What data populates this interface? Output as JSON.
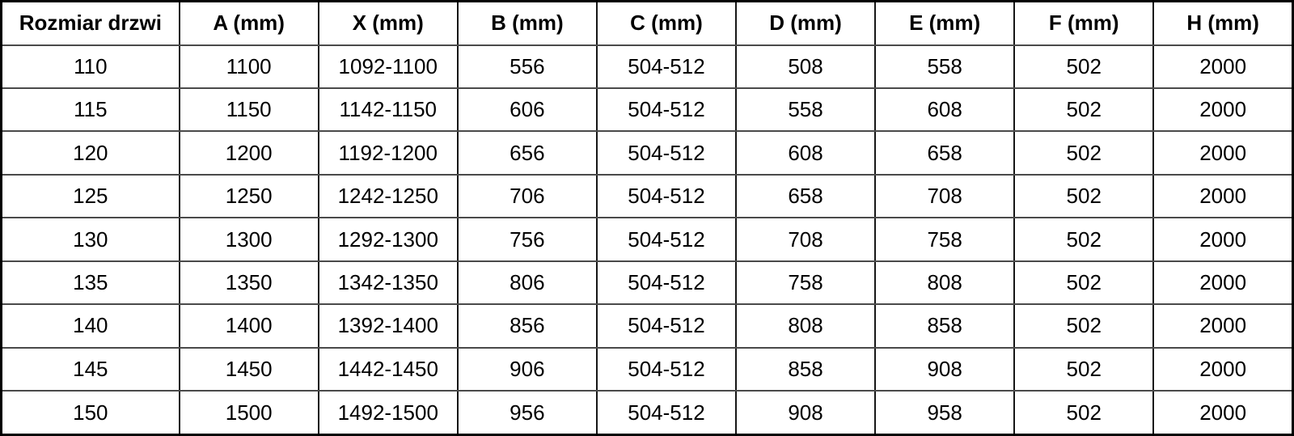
{
  "table": {
    "columns": [
      "Rozmiar drzwi",
      "A (mm)",
      "X (mm)",
      "B (mm)",
      "C (mm)",
      "D (mm)",
      "E (mm)",
      "F (mm)",
      "H (mm)"
    ],
    "rows": [
      [
        "110",
        "1100",
        "1092-1100",
        "556",
        "504-512",
        "508",
        "558",
        "502",
        "2000"
      ],
      [
        "115",
        "1150",
        "1142-1150",
        "606",
        "504-512",
        "558",
        "608",
        "502",
        "2000"
      ],
      [
        "120",
        "1200",
        "1192-1200",
        "656",
        "504-512",
        "608",
        "658",
        "502",
        "2000"
      ],
      [
        "125",
        "1250",
        "1242-1250",
        "706",
        "504-512",
        "658",
        "708",
        "502",
        "2000"
      ],
      [
        "130",
        "1300",
        "1292-1300",
        "756",
        "504-512",
        "708",
        "758",
        "502",
        "2000"
      ],
      [
        "135",
        "1350",
        "1342-1350",
        "806",
        "504-512",
        "758",
        "808",
        "502",
        "2000"
      ],
      [
        "140",
        "1400",
        "1392-1400",
        "856",
        "504-512",
        "808",
        "858",
        "502",
        "2000"
      ],
      [
        "145",
        "1450",
        "1442-1450",
        "906",
        "504-512",
        "858",
        "908",
        "502",
        "2000"
      ],
      [
        "150",
        "1500",
        "1492-1500",
        "956",
        "504-512",
        "908",
        "958",
        "502",
        "2000"
      ]
    ]
  },
  "colors": {
    "background": "#ffffff",
    "text": "#000000",
    "outer_border": "#000000",
    "vertical_border": "#161616",
    "horizontal_border": "#4a4a4a"
  }
}
